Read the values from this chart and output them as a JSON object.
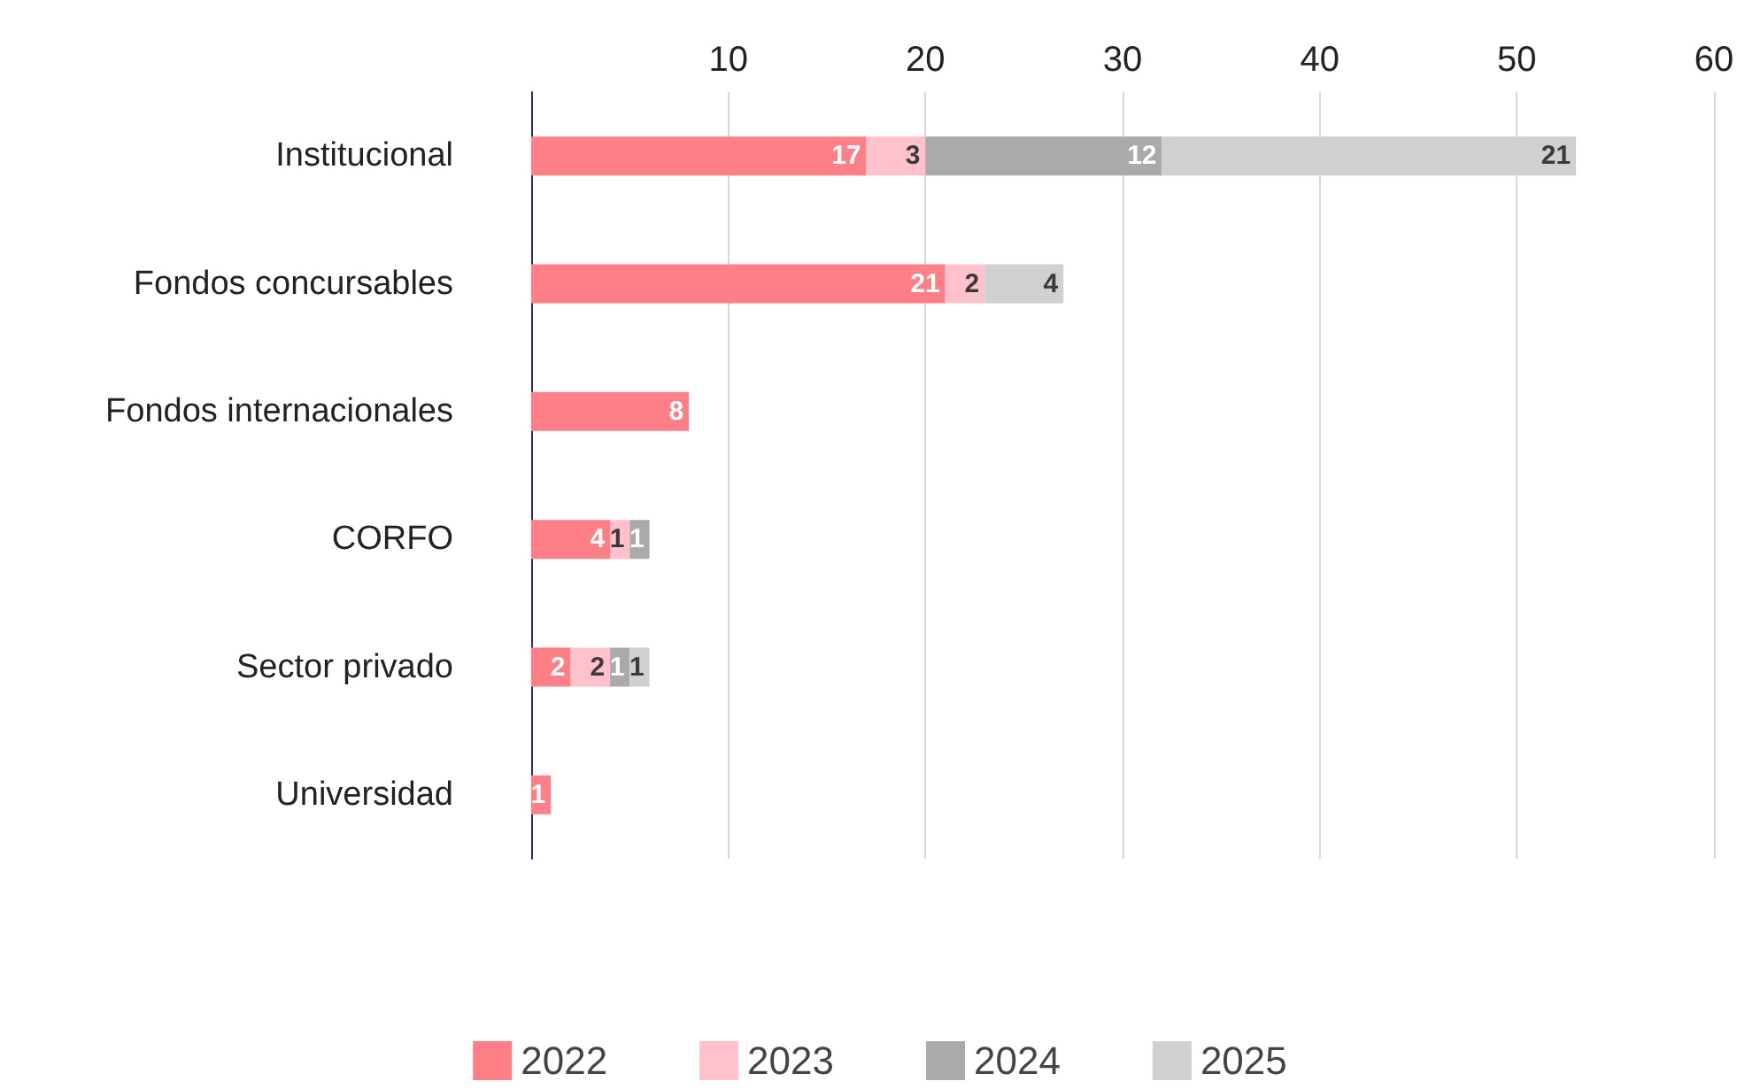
{
  "chart_data": {
    "type": "bar",
    "orientation": "horizontal",
    "stacked": true,
    "data_labels": true,
    "grid": "x",
    "legend": "bottom",
    "categories": [
      "Institucional",
      "Fondos concursables",
      "Fondos internacionales",
      "CORFO",
      "Sector privado",
      "Universidad"
    ],
    "series": [
      {
        "name": "2022",
        "color": "#ff7f87",
        "values": [
          17,
          21,
          8,
          4,
          2,
          1
        ]
      },
      {
        "name": "2023",
        "color": "#ffc2cc",
        "values": [
          3,
          2,
          null,
          1,
          2,
          null
        ]
      },
      {
        "name": "2024",
        "color": "#aaaaaa",
        "values": [
          12,
          null,
          null,
          1,
          1,
          null
        ]
      },
      {
        "name": "2025",
        "color": "#d0d0d0",
        "values": [
          21,
          4,
          null,
          null,
          1,
          null
        ]
      }
    ],
    "xlim": [
      0,
      60
    ],
    "xticks": [
      10,
      20,
      30,
      40,
      50,
      60
    ]
  }
}
